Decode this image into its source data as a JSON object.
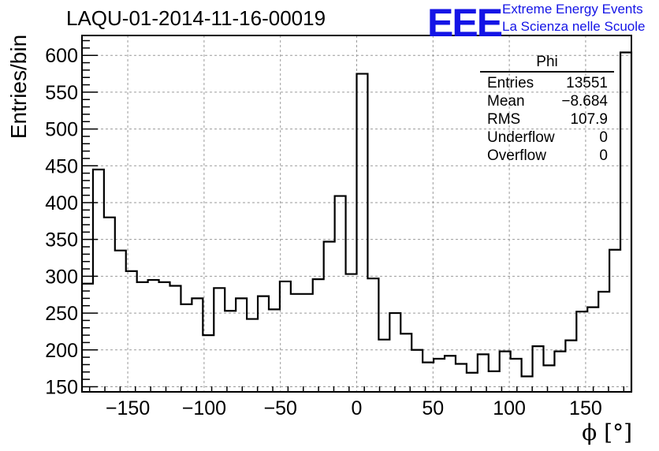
{
  "title": "LAQU-01-2014-11-16-00019",
  "logo": {
    "mark": "EEE",
    "line1": "Extreme Energy Events",
    "line2": "La Scienza nelle Scuole",
    "color": "#1414e6"
  },
  "stats_box": {
    "name": "Phi",
    "rows": [
      {
        "label": "Entries",
        "value": "13551"
      },
      {
        "label": "Mean",
        "value": "−8.684"
      },
      {
        "label": "RMS",
        "value": "107.9"
      },
      {
        "label": "Underflow",
        "value": "0"
      },
      {
        "label": "Overflow",
        "value": "0"
      }
    ]
  },
  "chart_data": {
    "type": "histogram",
    "title": "LAQU-01-2014-11-16-00019",
    "xlabel": "ϕ [°]",
    "ylabel": "Entries/bin",
    "xlim": [
      -180,
      180
    ],
    "ylim": [
      143,
      627
    ],
    "bin_width": 7.2,
    "xticks": [
      -150,
      -100,
      -50,
      0,
      50,
      100,
      150
    ],
    "yticks": [
      150,
      200,
      250,
      300,
      350,
      400,
      450,
      500,
      550,
      600
    ],
    "grid": true,
    "values": [
      290,
      445,
      380,
      335,
      307,
      292,
      295,
      292,
      287,
      262,
      270,
      220,
      284,
      253,
      270,
      242,
      273,
      255,
      293,
      276,
      276,
      296,
      347,
      409,
      303,
      575,
      297,
      214,
      250,
      222,
      200,
      183,
      188,
      192,
      181,
      169,
      194,
      171,
      198,
      188,
      164,
      205,
      179,
      198,
      213,
      252,
      258,
      279,
      336,
      604
    ]
  }
}
